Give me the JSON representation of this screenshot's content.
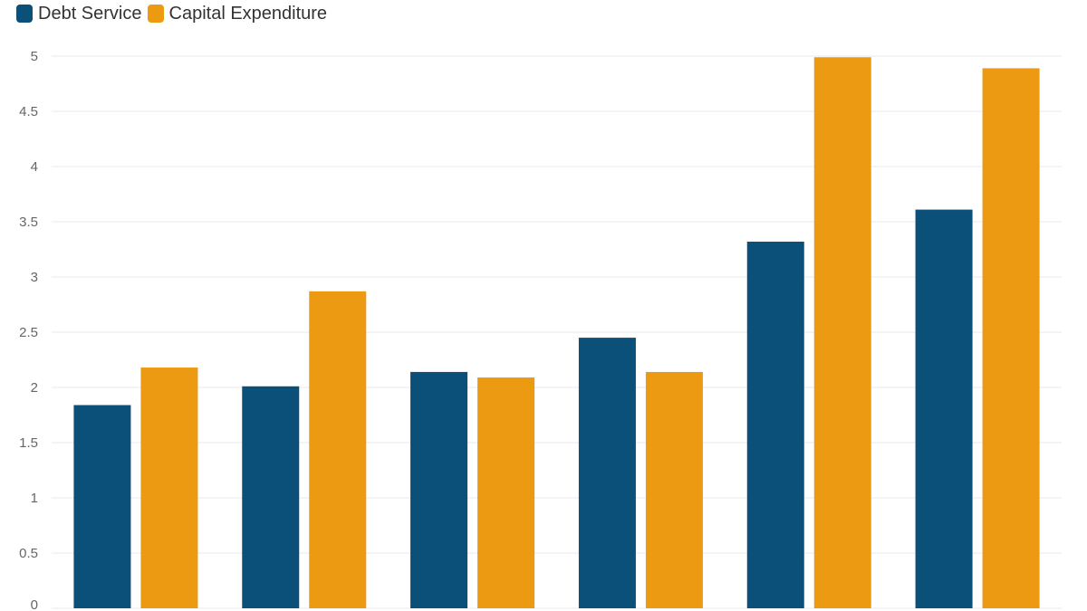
{
  "chart_data": {
    "type": "bar",
    "categories": [
      "",
      "",
      "",
      "",
      "",
      ""
    ],
    "series": [
      {
        "name": "Debt Service",
        "color": "#0b5078",
        "values": [
          1.84,
          2.01,
          2.14,
          2.45,
          3.32,
          3.61
        ]
      },
      {
        "name": "Capital Expenditure",
        "color": "#ec9a12",
        "values": [
          2.18,
          2.87,
          2.09,
          2.14,
          4.99,
          4.89
        ]
      }
    ],
    "title": "",
    "xlabel": "",
    "ylabel": "",
    "ylim": [
      0,
      5
    ],
    "yticks": [
      "0",
      "0.5",
      "1",
      "1.5",
      "2",
      "2.5",
      "3",
      "3.5",
      "4",
      "4.5",
      "5"
    ],
    "grid": true,
    "legend_position": "top-left"
  }
}
